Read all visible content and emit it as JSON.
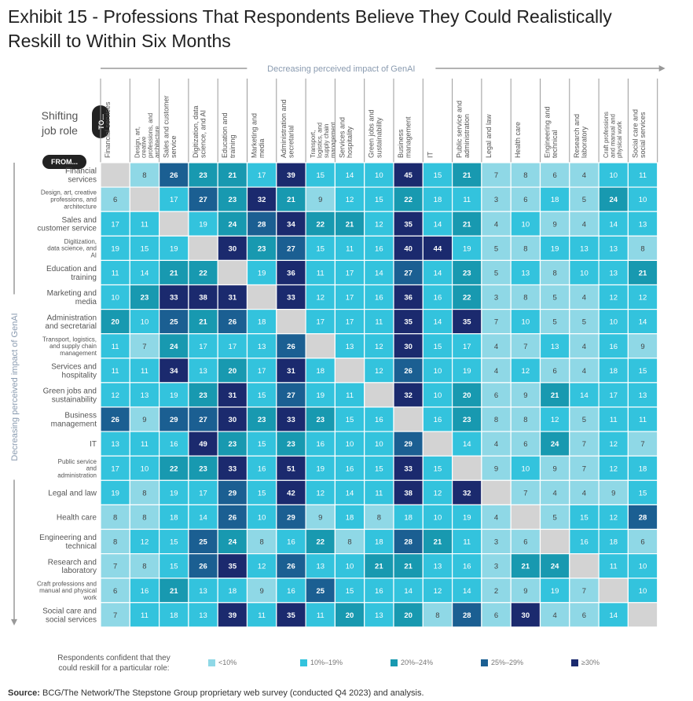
{
  "title_line1": "Exhibit 15 - Professions That Respondents Believe They Could Realistically",
  "title_line2": "Reskill to Within Six Months",
  "source_label": "Source:",
  "source_text": "BCG/The Network/The Stepstone Group proprietary web survey (conducted Q4 2023) and analysis.",
  "legend": {
    "title": "Respondents confident that they could reskill for a particular role:",
    "items": [
      {
        "label": "<10%",
        "color": "#8fd8e6"
      },
      {
        "label": "10%–19%",
        "color": "#33c3dd"
      },
      {
        "label": "20%–24%",
        "color": "#1899b0"
      },
      {
        "label": "25%–29%",
        "color": "#1b5f92"
      },
      {
        "label": "≥30%",
        "color": "#1b2a6e"
      }
    ]
  },
  "colors": {
    "diag": "#d3d3d3",
    "text_light": "#ffffff",
    "text_dark": "#444444",
    "arrow": "#999999"
  },
  "chart_data": {
    "type": "heatmap",
    "top_axis_label": "Decreasing perceived impact of GenAI",
    "left_axis_label": "Decreasing perceived impact of GenAI",
    "corner_label": "Shifting job role",
    "to_label": "TO...",
    "from_label": "FROM...",
    "columns": [
      "Financial services",
      "Design, art, creative professions, and architecture",
      "Sales and customer service",
      "Digitization, data science, and AI",
      "Education and training",
      "Marketing and media",
      "Administration and secretarial",
      "Transport, logistics, and supply chain management",
      "Services and hospitality",
      "Green jobs and sustainability",
      "Business management",
      "IT",
      "Public service and administration",
      "Legal and law",
      "Health care",
      "Engineering and technical",
      "Research and laboratory",
      "Craft professions and manual and physical work",
      "Social care and social services"
    ],
    "rows": [
      "Financial services",
      "Design, art, creative professions, and architecture",
      "Sales and customer service",
      "Digitization, data science, and AI",
      "Education and training",
      "Marketing and media",
      "Administration and secretarial",
      "Transport, logistics, and supply chain management",
      "Services and hospitality",
      "Green jobs and sustainability",
      "Business management",
      "IT",
      "Public service and administration",
      "Legal and law",
      "Health care",
      "Engineering and technical",
      "Research and laboratory",
      "Craft professions and manual and physical work",
      "Social care and social services"
    ],
    "values": [
      [
        null,
        8,
        26,
        23,
        21,
        17,
        39,
        15,
        14,
        10,
        45,
        15,
        21,
        7,
        8,
        6,
        4,
        10,
        11
      ],
      [
        6,
        null,
        17,
        27,
        23,
        32,
        21,
        9,
        12,
        15,
        22,
        18,
        11,
        3,
        6,
        18,
        5,
        24,
        10
      ],
      [
        17,
        11,
        null,
        19,
        24,
        28,
        34,
        22,
        21,
        12,
        35,
        14,
        21,
        4,
        10,
        9,
        4,
        14,
        13
      ],
      [
        19,
        15,
        19,
        null,
        30,
        23,
        27,
        15,
        11,
        16,
        40,
        44,
        19,
        5,
        8,
        19,
        13,
        13,
        8
      ],
      [
        11,
        14,
        21,
        22,
        null,
        19,
        36,
        11,
        17,
        14,
        27,
        14,
        23,
        5,
        13,
        8,
        10,
        13,
        21
      ],
      [
        10,
        23,
        33,
        38,
        31,
        null,
        33,
        12,
        17,
        16,
        36,
        16,
        22,
        3,
        8,
        5,
        4,
        12,
        12
      ],
      [
        20,
        10,
        25,
        21,
        26,
        18,
        null,
        17,
        17,
        11,
        35,
        14,
        35,
        7,
        10,
        5,
        5,
        10,
        14
      ],
      [
        11,
        7,
        24,
        17,
        17,
        13,
        26,
        null,
        13,
        12,
        30,
        15,
        17,
        4,
        7,
        13,
        4,
        16,
        9
      ],
      [
        11,
        11,
        34,
        13,
        20,
        17,
        31,
        18,
        null,
        12,
        26,
        10,
        19,
        4,
        12,
        6,
        4,
        18,
        15
      ],
      [
        12,
        13,
        19,
        23,
        31,
        15,
        27,
        19,
        11,
        null,
        32,
        10,
        20,
        6,
        9,
        21,
        14,
        17,
        13
      ],
      [
        26,
        9,
        29,
        27,
        30,
        23,
        33,
        23,
        15,
        16,
        null,
        16,
        23,
        8,
        8,
        12,
        5,
        11,
        11
      ],
      [
        13,
        11,
        16,
        49,
        23,
        15,
        23,
        16,
        10,
        10,
        29,
        null,
        14,
        4,
        6,
        24,
        7,
        12,
        7
      ],
      [
        17,
        10,
        22,
        23,
        33,
        16,
        51,
        19,
        16,
        15,
        33,
        15,
        null,
        9,
        10,
        9,
        7,
        12,
        18
      ],
      [
        19,
        8,
        19,
        17,
        29,
        15,
        42,
        12,
        14,
        11,
        38,
        12,
        32,
        null,
        7,
        4,
        4,
        9,
        15
      ],
      [
        8,
        8,
        18,
        14,
        26,
        10,
        29,
        9,
        18,
        8,
        18,
        10,
        19,
        4,
        null,
        5,
        15,
        12,
        28
      ],
      [
        8,
        12,
        15,
        25,
        24,
        8,
        16,
        22,
        8,
        18,
        28,
        21,
        11,
        3,
        6,
        null,
        16,
        18,
        6
      ],
      [
        7,
        8,
        15,
        26,
        35,
        12,
        26,
        13,
        10,
        21,
        21,
        13,
        16,
        3,
        21,
        24,
        null,
        11,
        10
      ],
      [
        6,
        16,
        21,
        13,
        18,
        9,
        16,
        25,
        15,
        16,
        14,
        12,
        14,
        2,
        9,
        19,
        7,
        null,
        10
      ],
      [
        7,
        11,
        18,
        13,
        39,
        11,
        35,
        11,
        20,
        13,
        20,
        8,
        28,
        6,
        30,
        4,
        6,
        14,
        null
      ]
    ]
  }
}
